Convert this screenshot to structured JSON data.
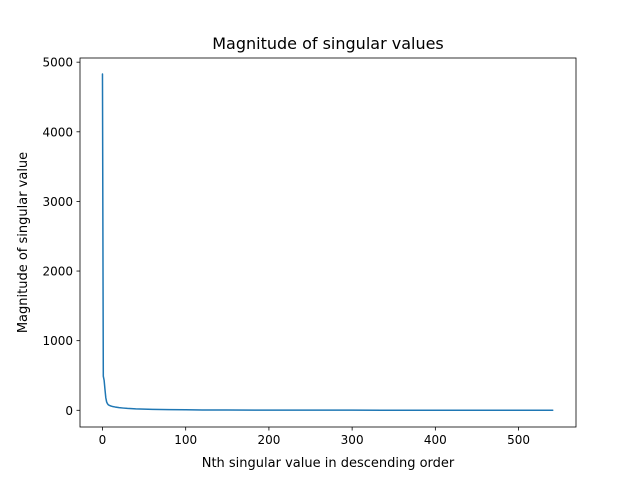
{
  "chart_data": {
    "type": "line",
    "title": "Magnitude of singular values",
    "xlabel": "Nth singular value in descending order",
    "ylabel": "Magnitude of singular value",
    "xlim": [
      -27,
      569
    ],
    "ylim": [
      -240,
      5060
    ],
    "xticks": [
      0,
      100,
      200,
      300,
      400,
      500
    ],
    "yticks": [
      0,
      1000,
      2000,
      3000,
      4000,
      5000
    ],
    "grid": false,
    "legend": "none",
    "color": "#1f77b4",
    "series": [
      {
        "x": [
          0,
          1,
          2,
          3,
          4,
          5,
          6,
          7,
          8,
          10,
          12,
          15,
          20,
          25,
          30,
          40,
          50,
          60,
          80,
          100,
          120,
          150,
          200,
          250,
          300,
          350,
          400,
          450,
          500,
          541
        ],
        "values": [
          4830,
          490,
          430,
          300,
          180,
          120,
          95,
          80,
          72,
          62,
          55,
          48,
          38,
          32,
          27,
          20,
          16,
          13,
          9,
          7,
          5,
          3.5,
          2.5,
          2,
          1.6,
          1.3,
          1.1,
          0.9,
          0.7,
          0.5
        ]
      }
    ]
  }
}
